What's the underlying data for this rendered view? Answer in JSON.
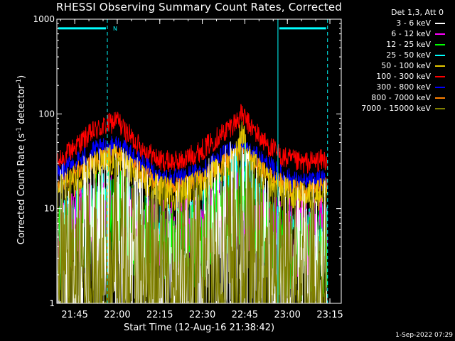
{
  "title": "RHESSI Observing Summary Count Rates, Corrected",
  "xlabel": "Start Time (12-Aug-16 21:38:42)",
  "ylabel_parts": {
    "pre": "Corrected Count Rate (s",
    "sup1": "-1",
    "mid": " detector",
    "sup2": "-1",
    "post": ")"
  },
  "legend": {
    "header": "Det 1,3, Att 0",
    "items": [
      {
        "label": "3 - 6 keV",
        "color": "#ffffff"
      },
      {
        "label": "6 - 12 keV",
        "color": "#ff00ff"
      },
      {
        "label": "12 - 25 keV",
        "color": "#00ff00"
      },
      {
        "label": "25 - 50 keV",
        "color": "#00ffff"
      },
      {
        "label": "50 - 100 keV",
        "color": "#e6c800"
      },
      {
        "label": "100 - 300 keV",
        "color": "#ff0000"
      },
      {
        "label": "300 - 800 keV",
        "color": "#0000ff"
      },
      {
        "label": "800 - 7000 keV",
        "color": "#ff8000"
      },
      {
        "label": "7000 - 15000 keV",
        "color": "#808000"
      }
    ]
  },
  "datestamp": "1-Sep-2022 07:29",
  "annotations": {
    "flag_letter": "N"
  },
  "chart_data": {
    "type": "line",
    "yscale": "log",
    "ylim": [
      1,
      1000
    ],
    "xlim": [
      "21:38:42",
      "23:19:00"
    ],
    "x_ticks": [
      "21:45",
      "22:00",
      "22:15",
      "22:30",
      "22:45",
      "23:00",
      "23:15"
    ],
    "y_ticks": [
      "1",
      "10",
      "100",
      "1000"
    ],
    "x_label_unit": "HH:MM",
    "night_boundaries": [
      "21:38:42",
      "21:56:30",
      "22:56:40",
      "23:14:10"
    ],
    "night_intervals": [
      [
        "21:38:42",
        "21:56:30"
      ],
      [
        "22:56:40",
        "23:14:10"
      ]
    ],
    "saa_flag_level": 800,
    "series": [
      {
        "name": "100 - 300 keV",
        "color": "#ff0000",
        "noise": 0.04,
        "dropout": 0,
        "points": [
          [
            "21:39",
            30
          ],
          [
            "21:45",
            45
          ],
          [
            "21:52",
            66
          ],
          [
            "21:58",
            80
          ],
          [
            "22:00",
            87
          ],
          [
            "22:02",
            70
          ],
          [
            "22:08",
            45
          ],
          [
            "22:15",
            32
          ],
          [
            "22:22",
            31
          ],
          [
            "22:30",
            42
          ],
          [
            "22:37",
            62
          ],
          [
            "22:42",
            84
          ],
          [
            "22:44",
            100
          ],
          [
            "22:46",
            80
          ],
          [
            "22:52",
            50
          ],
          [
            "22:58",
            35
          ],
          [
            "23:05",
            30
          ],
          [
            "23:14",
            33
          ]
        ]
      },
      {
        "name": "300 - 800 keV",
        "color": "#0000ff",
        "noise": 0.04,
        "dropout": 0,
        "points": [
          [
            "21:39",
            22
          ],
          [
            "21:45",
            30
          ],
          [
            "21:52",
            40
          ],
          [
            "21:58",
            45
          ],
          [
            "22:00",
            47
          ],
          [
            "22:02",
            42
          ],
          [
            "22:08",
            30
          ],
          [
            "22:15",
            21
          ],
          [
            "22:22",
            20
          ],
          [
            "22:30",
            25
          ],
          [
            "22:37",
            35
          ],
          [
            "22:42",
            42
          ],
          [
            "22:44",
            45
          ],
          [
            "22:46",
            40
          ],
          [
            "22:52",
            30
          ],
          [
            "22:58",
            22
          ],
          [
            "23:05",
            18
          ],
          [
            "23:14",
            20
          ]
        ]
      },
      {
        "name": "800 - 7000 keV",
        "color": "#ff8000",
        "noise": 0.035,
        "dropout": 0,
        "points": [
          [
            "21:39",
            17
          ],
          [
            "21:45",
            24
          ],
          [
            "21:52",
            32
          ],
          [
            "21:58",
            37
          ],
          [
            "22:00",
            38
          ],
          [
            "22:02",
            34
          ],
          [
            "22:08",
            25
          ],
          [
            "22:15",
            18
          ],
          [
            "22:22",
            17
          ],
          [
            "22:30",
            21
          ],
          [
            "22:37",
            29
          ],
          [
            "22:42",
            35
          ],
          [
            "22:44",
            37
          ],
          [
            "22:46",
            33
          ],
          [
            "22:52",
            24
          ],
          [
            "22:58",
            18
          ],
          [
            "23:05",
            15
          ],
          [
            "23:14",
            17
          ]
        ]
      },
      {
        "name": "50 - 100 keV",
        "color": "#e6c800",
        "noise": 0.06,
        "dropout": 0,
        "points": [
          [
            "21:39",
            15
          ],
          [
            "21:45",
            20
          ],
          [
            "21:52",
            27
          ],
          [
            "21:58",
            32
          ],
          [
            "22:00",
            33
          ],
          [
            "22:02",
            29
          ],
          [
            "22:08",
            20
          ],
          [
            "22:15",
            15
          ],
          [
            "22:22",
            14
          ],
          [
            "22:30",
            18
          ],
          [
            "22:37",
            25
          ],
          [
            "22:42",
            36
          ],
          [
            "22:44",
            70
          ],
          [
            "22:46",
            33
          ],
          [
            "22:52",
            20
          ],
          [
            "22:58",
            15
          ],
          [
            "23:05",
            13
          ],
          [
            "23:14",
            15
          ]
        ]
      },
      {
        "name": "25 - 50 keV",
        "color": "#00ffff",
        "noise": 0.1,
        "dropout": 0,
        "points": [
          [
            "21:39",
            6
          ],
          [
            "21:45",
            8
          ],
          [
            "21:52",
            11
          ],
          [
            "21:58",
            13
          ],
          [
            "22:00",
            14
          ],
          [
            "22:02",
            11
          ],
          [
            "22:08",
            8
          ],
          [
            "22:15",
            6
          ],
          [
            "22:22",
            6
          ],
          [
            "22:30",
            8
          ],
          [
            "22:37",
            13
          ],
          [
            "22:42",
            22
          ],
          [
            "22:44",
            35
          ],
          [
            "22:46",
            20
          ],
          [
            "22:52",
            9
          ],
          [
            "22:58",
            6
          ],
          [
            "23:05",
            5
          ],
          [
            "23:14",
            6
          ]
        ]
      },
      {
        "name": "6 - 12 keV",
        "color": "#ff00ff",
        "noise": 0.14,
        "dropout": 0,
        "points": [
          [
            "21:39",
            5
          ],
          [
            "21:45",
            6
          ],
          [
            "21:52",
            8
          ],
          [
            "21:58",
            9
          ],
          [
            "22:00",
            9
          ],
          [
            "22:02",
            8
          ],
          [
            "22:08",
            6
          ],
          [
            "22:15",
            5
          ],
          [
            "22:22",
            5
          ],
          [
            "22:30",
            6
          ],
          [
            "22:37",
            8
          ],
          [
            "22:42",
            10
          ],
          [
            "22:44",
            11
          ],
          [
            "22:46",
            9
          ],
          [
            "22:52",
            6
          ],
          [
            "22:58",
            5
          ],
          [
            "23:05",
            5
          ],
          [
            "23:14",
            5
          ]
        ]
      },
      {
        "name": "12 - 25 keV",
        "color": "#00ff00",
        "noise": 0.16,
        "dropout": 0,
        "points": [
          [
            "21:39",
            3.5
          ],
          [
            "21:45",
            5
          ],
          [
            "21:52",
            8
          ],
          [
            "21:58",
            10
          ],
          [
            "22:00",
            10
          ],
          [
            "22:02",
            8
          ],
          [
            "22:08",
            5
          ],
          [
            "22:15",
            3.5
          ],
          [
            "22:22",
            3.5
          ],
          [
            "22:30",
            5
          ],
          [
            "22:37",
            8
          ],
          [
            "22:42",
            11
          ],
          [
            "22:44",
            12
          ],
          [
            "22:46",
            10
          ],
          [
            "22:52",
            5
          ],
          [
            "22:58",
            3.5
          ],
          [
            "23:05",
            3
          ],
          [
            "23:14",
            3.5
          ]
        ]
      },
      {
        "name": "3 - 6 keV",
        "color": "#ffffff",
        "noise": 0.35,
        "dropout": 0.08,
        "points": [
          [
            "21:39",
            3
          ],
          [
            "21:45",
            3
          ],
          [
            "21:52",
            4
          ],
          [
            "21:58",
            5
          ],
          [
            "22:00",
            5
          ],
          [
            "22:02",
            4
          ],
          [
            "22:08",
            3
          ],
          [
            "22:15",
            2
          ],
          [
            "22:22",
            2
          ],
          [
            "22:30",
            3
          ],
          [
            "22:37",
            4
          ],
          [
            "22:42",
            6
          ],
          [
            "22:44",
            7
          ],
          [
            "22:46",
            5
          ],
          [
            "22:52",
            3
          ],
          [
            "22:58",
            2.5
          ],
          [
            "23:05",
            2
          ],
          [
            "23:14",
            2
          ]
        ]
      },
      {
        "name": "7000 - 15000 keV",
        "color": "#808000",
        "noise": 0.35,
        "dropout": 0.12,
        "points": [
          [
            "21:39",
            2.5
          ],
          [
            "21:45",
            2.5
          ],
          [
            "21:52",
            3
          ],
          [
            "21:58",
            3.5
          ],
          [
            "22:00",
            3.5
          ],
          [
            "22:02",
            3
          ],
          [
            "22:08",
            2
          ],
          [
            "22:15",
            2
          ],
          [
            "22:22",
            2
          ],
          [
            "22:30",
            2.5
          ],
          [
            "22:37",
            3.5
          ],
          [
            "22:42",
            4
          ],
          [
            "22:44",
            4
          ],
          [
            "22:46",
            3.5
          ],
          [
            "22:52",
            2.5
          ],
          [
            "22:58",
            2
          ],
          [
            "23:05",
            2
          ],
          [
            "23:14",
            2
          ]
        ]
      }
    ]
  }
}
